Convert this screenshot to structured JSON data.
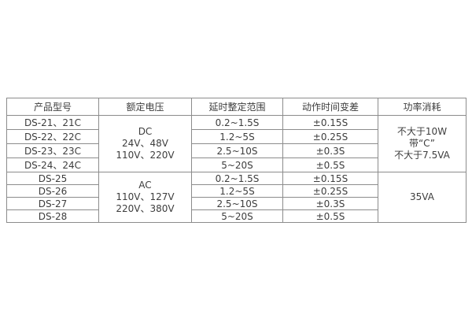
{
  "table": {
    "colors": {
      "border": "#8c8c8c",
      "text": "#3d3d3d",
      "background": "#ffffff"
    },
    "headers": [
      "产品型号",
      "额定电压",
      "延时整定范围",
      "动作时间变差",
      "功率消耗"
    ],
    "groups": [
      {
        "voltage_lines": [
          "DC",
          "24V、48V",
          "110V、220V"
        ],
        "power_lines": [
          "不大于10W",
          "带“C”",
          "不大于7.5VA"
        ],
        "rows": [
          {
            "model": "DS-21、21C",
            "range": "0.2~1.5S",
            "variation": "±0.15S"
          },
          {
            "model": "DS-22、22C",
            "range": "1.2~5S",
            "variation": "±0.25S"
          },
          {
            "model": "DS-23、23C",
            "range": "2.5~10S",
            "variation": "±0.3S"
          },
          {
            "model": "DS-24、24C",
            "range": "5~20S",
            "variation": "±0.5S"
          }
        ]
      },
      {
        "voltage_lines": [
          "AC",
          "110V、127V",
          "220V、380V"
        ],
        "power_lines": [
          "35VA"
        ],
        "rows": [
          {
            "model": "DS-25",
            "range": "0.2~1.5S",
            "variation": "±0.15S"
          },
          {
            "model": "DS-26",
            "range": "1.2~5S",
            "variation": "±0.25S"
          },
          {
            "model": "DS-27",
            "range": "2.5~10S",
            "variation": "±0.3S"
          },
          {
            "model": "DS-28",
            "range": "5~20S",
            "variation": "±0.5S"
          }
        ]
      }
    ]
  }
}
